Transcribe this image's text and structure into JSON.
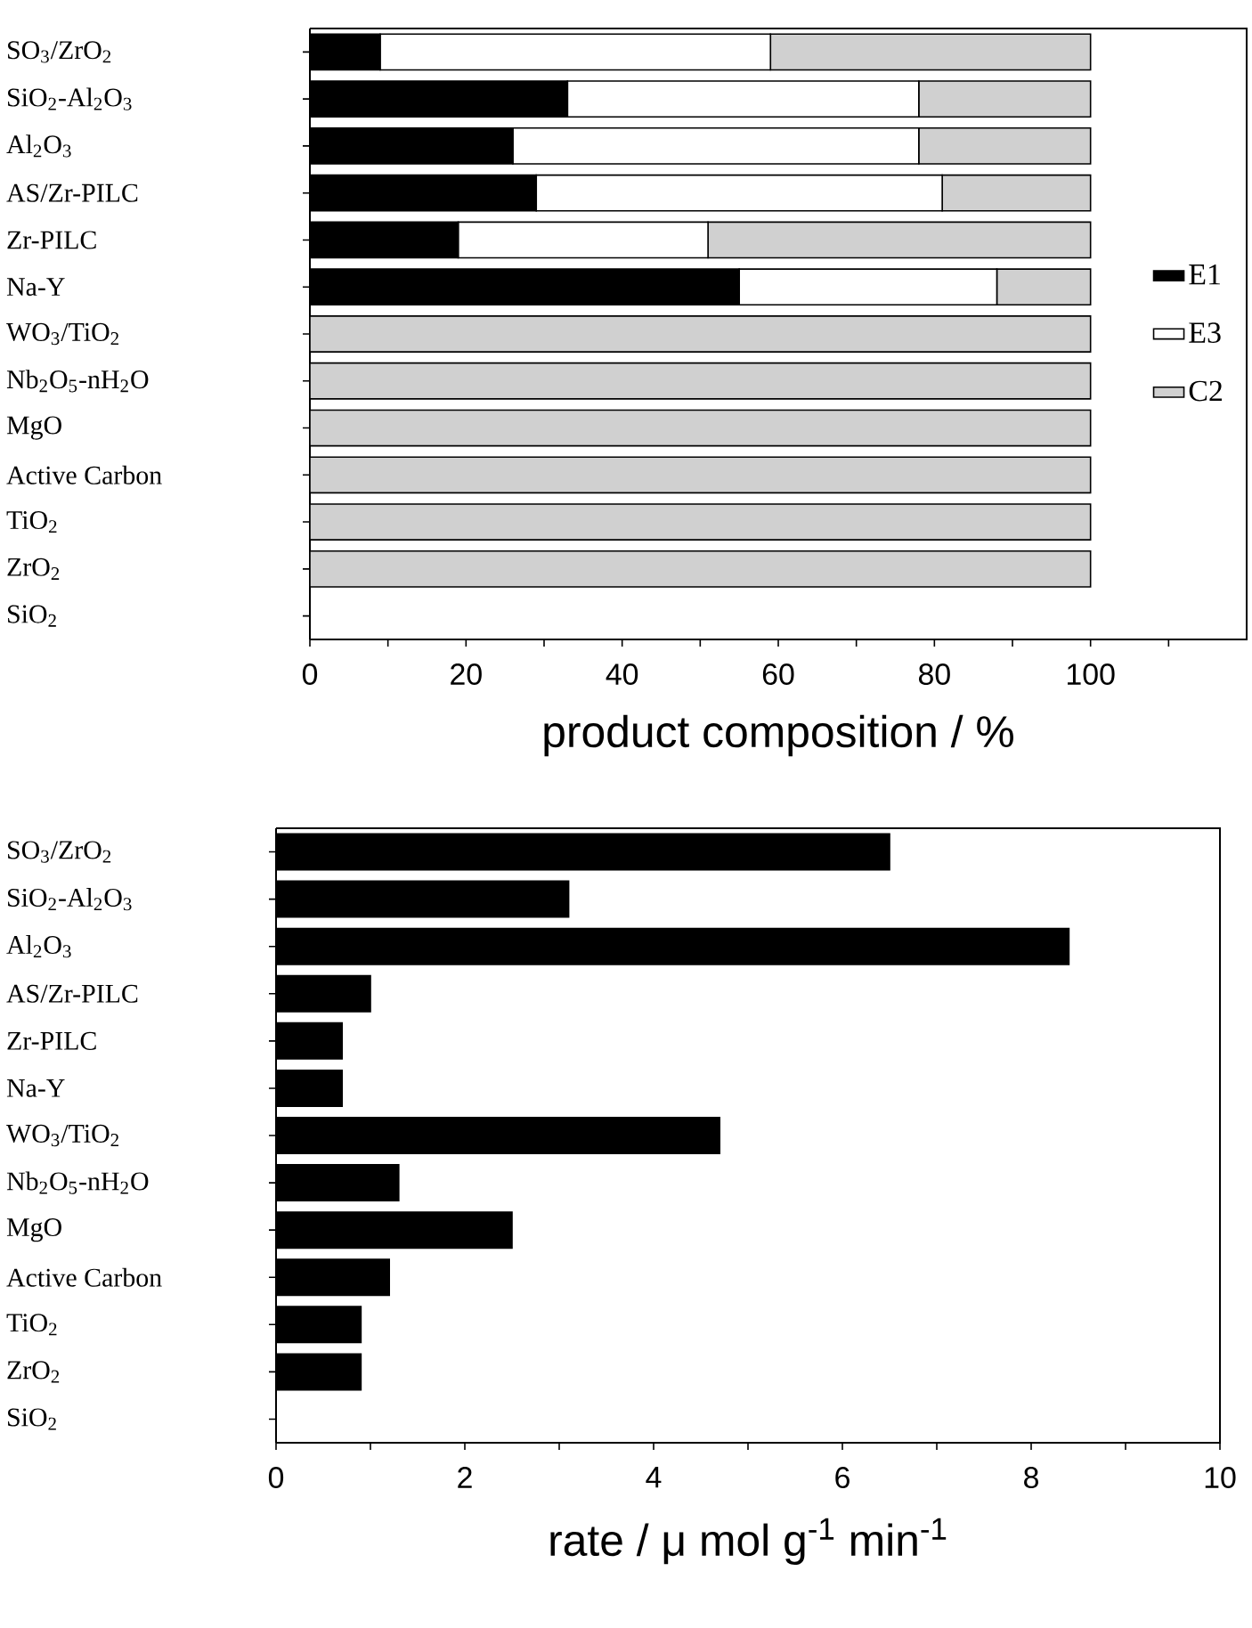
{
  "chart_data": [
    {
      "type": "bar",
      "orientation": "horizontal",
      "stacked": true,
      "legend": "right",
      "xlabel": "product composition / %",
      "categories": [
        "SO$_{3}$/ZrO$_{2}$",
        "SiO$_{2}$-Al$_{2}$O$_{3}$",
        "Al$_{2}$O$_{3}$",
        "AS/Zr-PILC",
        "Zr-PILC",
        "Na-Y",
        "WO$_{3}$/TiO$_{2}$",
        "Nb$_{2}$O$_{5}$-nH$_{2}$O",
        "MgO",
        "Active Carbon",
        "TiO$_{2}$",
        "ZrO$_{2}$",
        "SiO$_{2}$"
      ],
      "series": [
        {
          "name": "E1",
          "color": "#000000",
          "values": [
            9,
            33,
            26,
            29,
            19,
            55,
            0,
            0,
            0,
            0,
            0,
            0,
            null
          ]
        },
        {
          "name": "E3",
          "color": "#ffffff",
          "values": [
            50,
            45,
            52,
            52,
            32,
            33,
            0,
            0,
            0,
            0,
            0,
            0,
            null
          ]
        },
        {
          "name": "C2",
          "color": "#d0d0d0",
          "values": [
            41,
            22,
            22,
            19,
            49,
            12,
            100,
            100,
            100,
            100,
            100,
            100,
            null
          ]
        }
      ],
      "xlim": [
        0,
        120
      ],
      "xticks": [
        0,
        {
          "value": 10,
          "label": null
        },
        20,
        {
          "value": 30,
          "label": null
        },
        40,
        {
          "value": 50,
          "label": null
        },
        60,
        {
          "value": 70,
          "label": null
        },
        80,
        {
          "value": 90,
          "label": null
        },
        100,
        {
          "value": 110,
          "label": null
        }
      ]
    },
    {
      "type": "bar",
      "orientation": "horizontal",
      "xlabel": "rate / μ mol g$^{-1}$ min$^{-1}$",
      "categories": [
        "SO$_{3}$/ZrO$_{2}$",
        "SiO$_{2}$-Al$_{2}$O$_{3}$",
        "Al$_{2}$O$_{3}$",
        "AS/Zr-PILC",
        "Zr-PILC",
        "Na-Y",
        "WO$_{3}$/TiO$_{2}$",
        "Nb$_{2}$O$_{5}$-nH$_{2}$O",
        "MgO",
        "Active Carbon",
        "TiO$_{2}$",
        "ZrO$_{2}$",
        "SiO$_{2}$"
      ],
      "color": "#000000",
      "values": [
        6.5,
        3.1,
        8.4,
        1.0,
        0.7,
        0.7,
        4.7,
        1.3,
        2.5,
        1.2,
        0.9,
        0.9,
        null
      ],
      "xlim": [
        0,
        10
      ],
      "xticks": [
        0,
        {
          "value": 1,
          "label": null
        },
        2,
        {
          "value": 3,
          "label": null
        },
        4,
        {
          "value": 5,
          "label": null
        },
        6,
        {
          "value": 7,
          "label": null
        },
        8,
        {
          "value": 9,
          "label": null
        },
        10
      ]
    }
  ]
}
